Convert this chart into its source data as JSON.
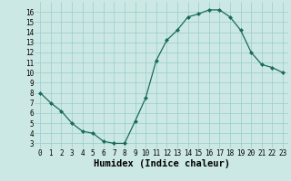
{
  "x": [
    0,
    1,
    2,
    3,
    4,
    5,
    6,
    7,
    8,
    9,
    10,
    11,
    12,
    13,
    14,
    15,
    16,
    17,
    18,
    19,
    20,
    21,
    22,
    23
  ],
  "y": [
    8.0,
    7.0,
    6.2,
    5.0,
    4.2,
    4.0,
    3.2,
    3.0,
    3.0,
    5.2,
    7.5,
    11.2,
    13.2,
    14.2,
    15.5,
    15.8,
    16.2,
    16.2,
    15.5,
    14.2,
    12.0,
    10.8,
    10.5,
    10.0
  ],
  "xlabel": "Humidex (Indice chaleur)",
  "xlim": [
    -0.5,
    23.5
  ],
  "ylim": [
    2.5,
    17.0
  ],
  "yticks": [
    3,
    4,
    5,
    6,
    7,
    8,
    9,
    10,
    11,
    12,
    13,
    14,
    15,
    16
  ],
  "xticks": [
    0,
    1,
    2,
    3,
    4,
    5,
    6,
    7,
    8,
    9,
    10,
    11,
    12,
    13,
    14,
    15,
    16,
    17,
    18,
    19,
    20,
    21,
    22,
    23
  ],
  "line_color": "#1a6b5a",
  "marker_color": "#1a6b5a",
  "bg_color": "#cce8e4",
  "grid_color": "#99cccc",
  "tick_label_fontsize": 5.5,
  "xlabel_fontsize": 7.5
}
